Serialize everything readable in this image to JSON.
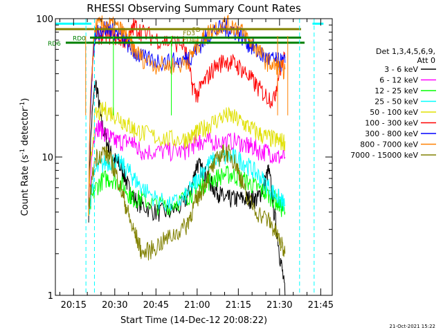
{
  "chart_data": {
    "type": "line",
    "title": "RHESSI Observing Summary Count Rates",
    "xlabel": "Start Time (14-Dec-12 20:08:22)",
    "ylabel": "Count Rate (s",
    "ylabel_sup1": "-1",
    "ylabel_mid": " detector",
    "ylabel_sup2": "-1",
    "ylabel_end": ")",
    "y_scale": "log",
    "ylim": [
      1,
      100
    ],
    "y_ticks": [
      {
        "value": 1,
        "label": "1"
      },
      {
        "value": 10,
        "label": "10"
      },
      {
        "value": 100,
        "label": "100"
      }
    ],
    "xlim_minutes_after_2000": [
      8.37,
      49.2
    ],
    "x_ticks": [
      "20:15",
      "20:30",
      "20:45",
      "21:00",
      "21:15",
      "21:30",
      "21:45"
    ],
    "x_tick_minutes_after_2000": [
      15,
      30,
      45,
      60,
      75,
      90,
      105
    ],
    "legend_header_1": "Det 1,3,4,5,6,9,",
    "legend_header_2": "Att 0",
    "series": [
      {
        "name": "3 - 6 keV",
        "color": "#000000",
        "x": [
          20.5,
          23,
          25,
          27,
          29,
          31,
          33,
          35,
          37,
          40,
          45,
          50,
          55,
          58,
          60,
          62,
          64,
          66,
          68,
          70,
          72,
          75,
          78,
          80,
          82,
          84,
          86,
          88,
          90,
          92
        ],
        "values": [
          4,
          35,
          18,
          13,
          10,
          9,
          8,
          6,
          5,
          4.5,
          4,
          4,
          4.5,
          6,
          9,
          8,
          7,
          6,
          5.5,
          5,
          5,
          5,
          5,
          5,
          5,
          6,
          8,
          4,
          2,
          1
        ]
      },
      {
        "name": "6 - 12 keV",
        "color": "#ff00ff",
        "x": [
          20.5,
          23,
          25,
          28,
          30,
          33,
          36,
          38,
          40,
          45,
          50,
          55,
          58,
          60,
          62,
          65,
          70,
          75,
          78,
          80,
          83,
          86,
          89,
          92
        ],
        "values": [
          4,
          17,
          16,
          14,
          13,
          13,
          13,
          12,
          11,
          11,
          11,
          11,
          12,
          13,
          13,
          13,
          13,
          13,
          12,
          12,
          11,
          11,
          10,
          10
        ]
      },
      {
        "name": "12 - 25 keV",
        "color": "#00ff00",
        "x": [
          20.5,
          23,
          26,
          29,
          32,
          35,
          37,
          40,
          45,
          50,
          55,
          58,
          60,
          63,
          66,
          70,
          73,
          76,
          79,
          82,
          85,
          88,
          90,
          92
        ],
        "values": [
          4,
          6,
          7,
          7,
          6.5,
          5.5,
          5,
          5,
          4.5,
          4.5,
          5,
          5.5,
          6,
          6.5,
          7,
          7.5,
          7.5,
          7,
          6.5,
          6,
          5.5,
          5,
          4.5,
          4
        ]
      },
      {
        "name": "25 - 50 keV",
        "color": "#00ffff",
        "x": [
          20.5,
          23,
          26,
          29,
          32,
          35,
          37,
          40,
          45,
          50,
          55,
          58,
          60,
          63,
          66,
          70,
          73,
          76,
          79,
          82,
          85,
          88,
          90,
          92
        ],
        "values": [
          4,
          8,
          9,
          9.5,
          9,
          8,
          7,
          6,
          5,
          4.5,
          5,
          6,
          7,
          8.5,
          9.5,
          10,
          10,
          9.5,
          8.5,
          7.5,
          6.5,
          5.5,
          5,
          4.5
        ]
      },
      {
        "name": "50 - 100 keV",
        "color": "#e0e000",
        "x": [
          20.5,
          23,
          26,
          29,
          32,
          35,
          37,
          40,
          45,
          50,
          55,
          58,
          60,
          63,
          66,
          70,
          73,
          76,
          79,
          82,
          85,
          88,
          90,
          92
        ],
        "values": [
          4,
          20,
          22,
          21,
          19,
          17,
          16,
          15,
          14,
          13.5,
          13.5,
          14,
          15,
          16.5,
          18,
          20,
          19.5,
          18,
          16.5,
          15,
          14,
          13.5,
          13,
          13
        ]
      },
      {
        "name": "100 - 300 keV",
        "color": "#ff0000",
        "x": [
          20.5,
          23,
          26,
          29,
          32,
          35,
          37,
          40,
          45,
          50,
          55,
          58,
          60,
          63,
          66,
          70,
          73,
          76,
          79,
          82,
          85,
          88,
          90,
          92
        ],
        "values": [
          4,
          75,
          78,
          76,
          72,
          68,
          90,
          80,
          72,
          68,
          66,
          34,
          28,
          36,
          44,
          50,
          48,
          44,
          38,
          32,
          28,
          26,
          42,
          52
        ]
      },
      {
        "name": "300 - 800 keV",
        "color": "#0000ff",
        "x": [
          20.5,
          23,
          26,
          29,
          32,
          35,
          37,
          40,
          45,
          50,
          55,
          58,
          60,
          63,
          66,
          70,
          73,
          76,
          79,
          82,
          85,
          88,
          90,
          92
        ],
        "values": [
          4,
          80,
          86,
          84,
          76,
          66,
          58,
          52,
          50,
          49,
          50,
          55,
          62,
          72,
          82,
          86,
          84,
          76,
          66,
          58,
          52,
          50,
          49,
          48
        ]
      },
      {
        "name": "800 - 7000 keV",
        "color": "#ff8000",
        "x": [
          20.5,
          23,
          26,
          29,
          32,
          35,
          37,
          40,
          45,
          50,
          55,
          58,
          60,
          63,
          66,
          70,
          73,
          76,
          79,
          82,
          85,
          88,
          90,
          92
        ],
        "values": [
          4,
          88,
          92,
          90,
          84,
          72,
          60,
          52,
          47,
          46,
          47,
          54,
          64,
          76,
          86,
          92,
          90,
          82,
          70,
          60,
          50,
          46,
          44,
          43
        ]
      },
      {
        "name": "7000 - 15000 keV",
        "color": "#808000",
        "x": [
          20.5,
          23,
          26,
          28,
          30,
          32,
          34,
          36,
          38,
          40,
          44,
          48,
          52,
          56,
          58,
          60,
          62,
          65,
          68,
          70,
          72,
          74,
          76,
          78,
          82,
          86,
          88,
          90,
          92
        ],
        "values": [
          4,
          10,
          11,
          10,
          8,
          6,
          4.5,
          3.2,
          2.6,
          2,
          2.2,
          2.5,
          2.8,
          3.2,
          4,
          5,
          6,
          8,
          10,
          11,
          10.5,
          9,
          7,
          5,
          4,
          3.5,
          3,
          2.5,
          2
        ]
      }
    ],
    "annotations": {
      "rd0": "RD0",
      "rd6": "RD6",
      "fd3": "FD3",
      "fd4": "FD4",
      "fd_partial": "FD",
      "rd0_level": 73,
      "rd6_level": 67,
      "fd_level": 84,
      "cyan_level": 92
    },
    "legend_placement": "right",
    "grid": false
  },
  "footer": {
    "timestamp": "21-Oct-2021 15:22"
  }
}
